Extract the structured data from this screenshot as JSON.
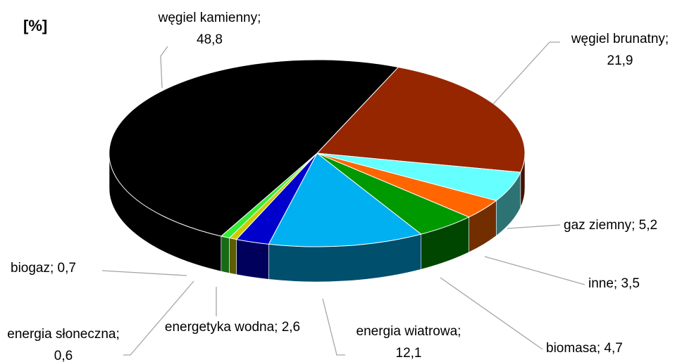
{
  "chart_data": {
    "type": "pie",
    "title": "[%]",
    "values": [
      21.9,
      5.2,
      3.5,
      4.7,
      12.1,
      2.6,
      0.6,
      0.7,
      48.8
    ],
    "value_labels": [
      "węgiel brunatny; 21,9",
      "gaz ziemny; 5,2",
      "inne; 3,5",
      "biomasa; 4,7",
      "energia wiatrowa; 12,1",
      "energetyka wodna; 2,6",
      "energia słoneczna; 0,6",
      "biogaz; 0,7",
      "węgiel kamienny; 48,8"
    ],
    "colors": [
      "#962600",
      "#66ffff",
      "#ff6600",
      "#009900",
      "#00b0f0",
      "#0000cc",
      "#cccc00",
      "#33ee33",
      "#000000"
    ]
  }
}
